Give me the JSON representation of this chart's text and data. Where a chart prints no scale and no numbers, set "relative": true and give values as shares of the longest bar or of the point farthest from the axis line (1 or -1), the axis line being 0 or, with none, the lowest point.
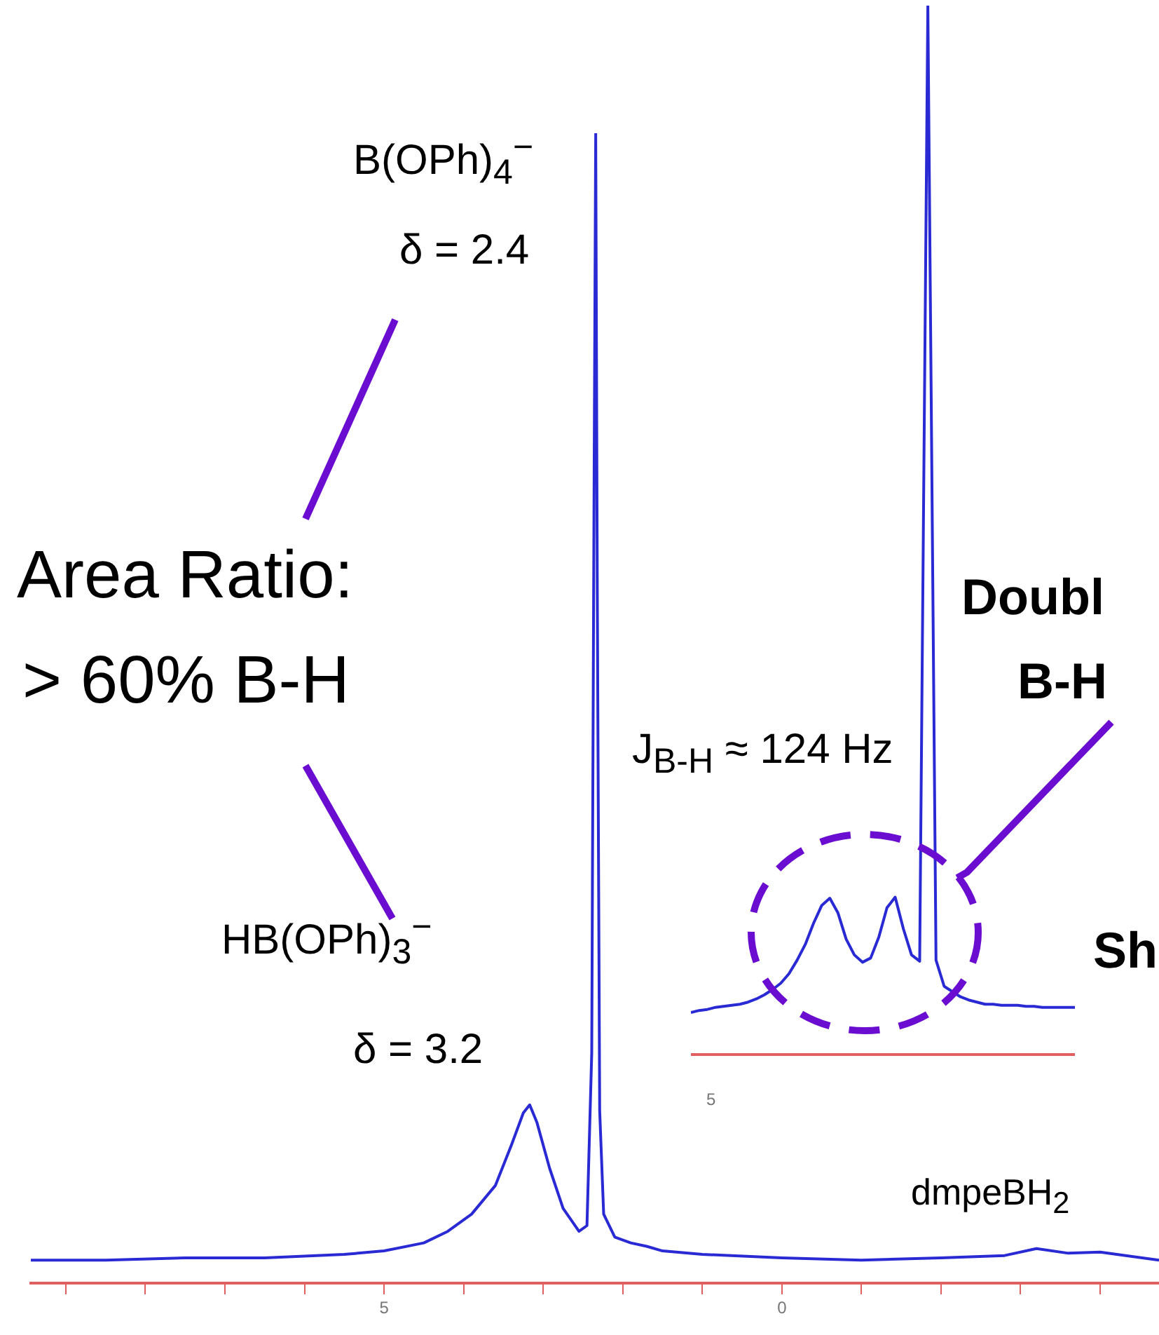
{
  "chart_data": [
    {
      "type": "line",
      "relative": true,
      "marker": "none",
      "color": "#2a2ad4",
      "xlim": [
        9.44,
        -4.74
      ],
      "xticks": [
        {
          "value": 9,
          "label": null
        },
        {
          "value": 8,
          "label": null
        },
        {
          "value": 7,
          "label": null
        },
        {
          "value": 6,
          "label": null
        },
        5,
        {
          "value": 4,
          "label": null
        },
        {
          "value": 3,
          "label": null
        },
        {
          "value": 2,
          "label": null
        },
        {
          "value": 1,
          "label": null
        },
        0,
        {
          "value": -1,
          "label": null
        },
        {
          "value": -2,
          "label": null
        },
        {
          "value": -3,
          "label": null
        },
        {
          "value": -4,
          "label": null
        }
      ],
      "x": [
        9.44,
        8.5,
        7.5,
        6.5,
        5.5,
        5,
        4.5,
        4.2,
        3.9,
        3.6,
        3.4,
        3.25,
        3.17,
        3.08,
        2.92,
        2.75,
        2.55,
        2.45,
        2.39,
        2.36,
        2.34,
        2.32,
        2.29,
        2.24,
        2.1,
        1.9,
        1.7,
        1.5,
        1,
        0,
        -1,
        -2,
        -2.8,
        -3.2,
        -3.6,
        -4,
        -4.74
      ],
      "values": [
        0.02,
        0.02,
        0.022,
        0.022,
        0.025,
        0.028,
        0.035,
        0.045,
        0.06,
        0.085,
        0.12,
        0.148,
        0.155,
        0.14,
        0.1,
        0.065,
        0.045,
        0.05,
        0.2,
        0.7,
        1.0,
        0.6,
        0.15,
        0.06,
        0.04,
        0.035,
        0.032,
        0.028,
        0.025,
        0.022,
        0.02,
        0.022,
        0.024,
        0.03,
        0.026,
        0.027,
        0.02
      ],
      "annotations": [
        "B(OPh)$_{4}$$^{−}$",
        "δ = 2.4",
        "Area Ratio:",
        "> 60% B-H",
        "HB(OPh)$_{3}$$^{−}$",
        "δ = 3.2",
        "dmpeBH$_{2}$",
        "Doubl",
        "B-H",
        "Sh"
      ]
    },
    {
      "type": "line",
      "relative": true,
      "marker": "none",
      "color": "#2a2ad4",
      "categories": [
        null,
        null,
        null,
        null,
        null,
        null,
        null,
        null,
        null,
        null,
        null,
        null,
        null,
        null,
        null,
        null,
        null,
        null,
        null,
        null,
        null,
        null,
        null,
        null,
        null,
        null,
        null,
        null,
        null,
        null,
        null,
        null,
        null,
        null,
        null,
        null,
        null,
        null,
        null,
        null,
        null,
        null,
        null,
        null,
        null,
        null,
        null,
        null
      ],
      "values": [
        0.04,
        0.042,
        0.043,
        0.045,
        0.046,
        0.047,
        0.048,
        0.05,
        0.053,
        0.057,
        0.062,
        0.068,
        0.077,
        0.09,
        0.105,
        0.125,
        0.142,
        0.149,
        0.135,
        0.11,
        0.095,
        0.088,
        0.092,
        0.112,
        0.14,
        0.15,
        0.12,
        0.095,
        0.089,
        1.0,
        0.09,
        0.065,
        0.06,
        0.055,
        0.052,
        0.05,
        0.048,
        0.048,
        0.047,
        0.047,
        0.047,
        0.046,
        0.046,
        0.045,
        0.045,
        0.045,
        0.045,
        0.045
      ],
      "annotations": [
        "J$_{B-H}$ ≈ 124 Hz",
        "5"
      ]
    }
  ]
}
